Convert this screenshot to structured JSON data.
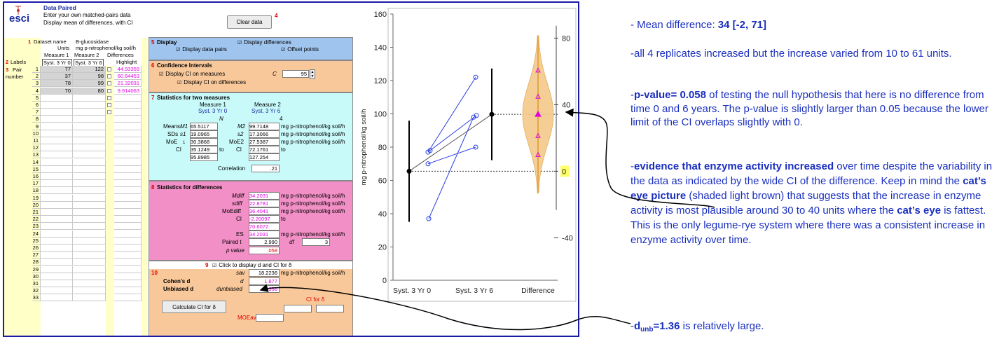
{
  "app": {
    "logo": "esci",
    "title": "Data Paired",
    "subtitle1": "Enter your own matched-pairs data",
    "subtitle2": "Display mean of differences, with CI",
    "clear_button": "Clear data",
    "clear_num": "4"
  },
  "grid": {
    "dataset_num": "1",
    "dataset_label": "Dataset name",
    "dataset_value": "B-glucosidase",
    "units_label": "Units",
    "units_value": "mg p-nitrophenol/kg soil/h",
    "col_m1": "Measure 1",
    "col_m2": "Measure 2",
    "col_diff": "Differences",
    "labels_num": "2",
    "labels_label": "Labels",
    "label_m1": "Syst. 3 Yr 0",
    "label_m2": "Syst. 3 Yr 6",
    "highlight": "Highlight",
    "pair_num": "3",
    "pair_label": "Pair",
    "number_label": "number",
    "rows": [
      {
        "n": "1",
        "m1": "77",
        "m2": "122",
        "d": "44.93359"
      },
      {
        "n": "2",
        "m1": "37",
        "m2": "98",
        "d": "60.64453"
      },
      {
        "n": "3",
        "m1": "78",
        "m2": "99",
        "d": "21.32031"
      },
      {
        "n": "4",
        "m1": "70",
        "m2": "80",
        "d": "9.914063"
      }
    ],
    "empty_rows": [
      "5",
      "6",
      "7",
      "8",
      "9",
      "10",
      "11",
      "12",
      "13",
      "14",
      "15",
      "16",
      "17",
      "18",
      "19",
      "20",
      "21",
      "22",
      "23",
      "24",
      "25",
      "26",
      "27",
      "28",
      "29",
      "30",
      "31",
      "32",
      "33"
    ]
  },
  "display": {
    "num": "5",
    "title": "Display",
    "pairs": "Display data pairs",
    "diffs": "Display differences",
    "offset": "Offset points"
  },
  "ci": {
    "num": "6",
    "title": "Confidence Intervals",
    "on_measures": "Display CI on measures",
    "on_diffs": "Display CI on differences",
    "c_label": "C",
    "c_value": "95"
  },
  "stats2": {
    "num": "7",
    "title": "Statistics for two measures",
    "m1_head": "Measure 1",
    "m2_head": "Measure 2",
    "m1_name": "Syst. 3 Yr 0",
    "m2_name": "Syst. 3 Yr 6",
    "n_label": "N",
    "n_value": "4",
    "means_label": "Means",
    "m1_sym": "M1",
    "m2_sym": "M2",
    "mean1": "65.5117",
    "mean2": "99.7148",
    "sds_label": "SDs",
    "s1_sym": "s1",
    "s2_sym": "s2",
    "sd1": "19.0965",
    "sd2": "17.3066",
    "moe_label": "MoE",
    "moe1_sym": "1",
    "moe2_sym": "MoE2",
    "moe1": "30.3868",
    "moe2": "27.5387",
    "ci_label": "CI",
    "ci1_lo": "35.1249",
    "ci1_hi": "95.8985",
    "ci2_lo": "72.1761",
    "ci2_hi": "127.254",
    "to": "to",
    "unit": "mg p-nitrophenol/kg soil/h",
    "corr_label": "Correlation",
    "corr_value": ".21"
  },
  "statsd": {
    "num": "8",
    "title": "Statistics for differences",
    "mdiff_label": "Mdiff",
    "mdiff": "34.2031",
    "sdiff_label": "sdiff",
    "sdiff": "22.8781",
    "moediff_label": "MoEdiff",
    "moediff": "36.4041",
    "ci_label": "CI",
    "ci_lo": "-2.20097",
    "ci_hi": "70.6072",
    "to": "to",
    "es_label": "ES",
    "es": "34.2031",
    "t_label": "Paired t",
    "t": "2.990",
    "df_label": "df",
    "df": "3",
    "p_label": "p value",
    "p": ".058",
    "unit": "mg p-nitrophenol/kg soil/h"
  },
  "cohen": {
    "num9": "9",
    "click_label": "Click to display d and CI for δ",
    "num10": "10",
    "sav_label": "sav",
    "sav": "18.2236",
    "unit": "mg p-nitrophenol/kg soil/h",
    "d_title": "Cohen's d",
    "d_sym": "d",
    "d": "1.877",
    "du_title": "Unbiased d",
    "du_sym": "dunbiased",
    "du": "1.358",
    "calc_button": "Calculate CI for δ",
    "ci_delta": "CI for δ",
    "moe_av": "MOEav"
  },
  "chart_data": {
    "type": "scatter",
    "ylabel": "mg p-nitrophenol/kg soil/h",
    "categories": [
      "Syst. 3 Yr 0",
      "Syst. 3 Yr 6",
      "Difference"
    ],
    "ylim": [
      0,
      160
    ],
    "yticks": [
      "0",
      "20",
      "40",
      "60",
      "80",
      "100",
      "120",
      "140",
      "160"
    ],
    "diff_ticks": [
      "-40",
      "0",
      "40",
      "80"
    ],
    "diff_zero_label": "0",
    "pairs": [
      [
        77,
        122
      ],
      [
        37,
        98
      ],
      [
        78,
        99
      ],
      [
        70,
        80
      ]
    ],
    "means": [
      65.5117,
      99.7148
    ],
    "ci_measures": [
      [
        35.1249,
        95.8985
      ],
      [
        72.1761,
        127.254
      ]
    ],
    "differences": [
      44.93359,
      60.64453,
      21.32031,
      9.914063
    ],
    "mean_diff": 34.2031,
    "ci_diff": [
      -2.20097,
      70.6072
    ],
    "colors": {
      "pairs": "#2a3fe0",
      "diff": "#e000e0",
      "eye": "#f3c98a",
      "eye_edge": "#e3a64a",
      "zero_box": "#ffff66"
    }
  },
  "notes": [
    {
      "pre": "- Mean difference:  ",
      "bold": "34 [-2, 71]",
      "post": ""
    },
    {
      "pre": "-all 4 replicates increased but the increase varied from 10 to 61 units.",
      "bold": "",
      "post": ""
    },
    {
      "pre": "-",
      "bold": "p-value= 0.058",
      "post": " of testing the null hypothesis that here is no difference from time 0 and 6 years. The p-value is slightly larger than 0.05 because the lower limit of the CI overlaps slightly with 0."
    },
    {
      "pre": "-",
      "bold": "evidence that enzyme activity increased",
      "post": " over time despite the variability in the data as indicated by the wide CI of the difference.  Keep in mind the "
    },
    {
      "pre": "-",
      "bold": "d",
      "sub": "unb",
      "post2": "=1.36",
      "post": " is relatively large."
    }
  ],
  "note4_b2": "cat’s eye picture",
  "note4_mid": " (shaded light brown) that suggests that the increase in enzyme activity is most plausible around 30 to 40 units where the ",
  "note4_b3": "cat’s eye",
  "note4_end": " is fattest.  This is the only legume-rye system where there was a consistent increase in enzyme activity over time."
}
